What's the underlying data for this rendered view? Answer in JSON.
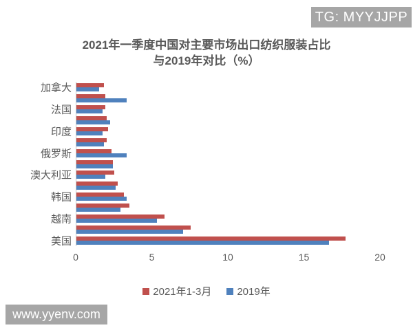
{
  "overlays": {
    "badge_text": "TG: MYYJJPP",
    "badge_color": "#a6a6a6",
    "watermark_text": "www.yyenv.com",
    "watermark_color": "#a6a6a6"
  },
  "chart_data": {
    "type": "bar",
    "orientation": "horizontal",
    "title_lines": [
      "2021年一季度中国对主要市场出口纺织服装占比",
      "与2019年对比（%）"
    ],
    "xlabel": "",
    "ylabel": "",
    "xlim": [
      0,
      20
    ],
    "x_ticks": [
      "0",
      "5",
      "10",
      "15",
      "20"
    ],
    "x_tick_values": [
      0,
      5,
      10,
      15,
      20
    ],
    "grid": false,
    "legend_position": "bottom",
    "text_color": "#595959",
    "series": [
      {
        "name": "2021年1-3月",
        "color": "#c0504d"
      },
      {
        "name": "2019年",
        "color": "#4f81bd"
      }
    ],
    "rows": [
      {
        "label": "加拿大",
        "values": [
          1.8,
          1.5
        ]
      },
      {
        "label": "",
        "values": [
          1.9,
          3.3
        ]
      },
      {
        "label": "法国",
        "values": [
          1.9,
          1.7
        ]
      },
      {
        "label": "",
        "values": [
          2.0,
          2.2
        ]
      },
      {
        "label": "印度",
        "values": [
          2.1,
          1.7
        ]
      },
      {
        "label": "",
        "values": [
          2.0,
          1.8
        ]
      },
      {
        "label": "俄罗斯",
        "values": [
          2.3,
          3.3
        ]
      },
      {
        "label": "",
        "values": [
          2.4,
          2.4
        ]
      },
      {
        "label": "澳大利亚",
        "values": [
          2.5,
          1.9
        ]
      },
      {
        "label": "",
        "values": [
          2.7,
          2.6
        ]
      },
      {
        "label": "韩国",
        "values": [
          3.1,
          3.3
        ]
      },
      {
        "label": "",
        "values": [
          3.5,
          2.9
        ]
      },
      {
        "label": "越南",
        "values": [
          5.8,
          5.3
        ]
      },
      {
        "label": "",
        "values": [
          7.5,
          7.0
        ]
      },
      {
        "label": "美国",
        "values": [
          17.7,
          16.6
        ]
      }
    ]
  }
}
